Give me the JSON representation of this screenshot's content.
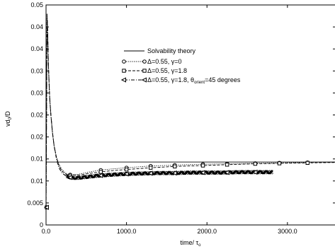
{
  "chart_data": {
    "type": "line",
    "title": "",
    "xlabel": "time/ τ",
    "xlabel_sub": "o",
    "ylabel": "vd",
    "ylabel_sub": "0",
    "ylabel_tail": "/D",
    "xlim": [
      0,
      3600
    ],
    "ylim": [
      0,
      0.05
    ],
    "xticks": [
      0,
      1000,
      2000,
      3000
    ],
    "xtick_labels": [
      "0.0",
      "1000.0",
      "2000.0",
      "3000.0"
    ],
    "yticks": [
      0,
      0.005,
      0.01,
      0.015,
      0.02,
      0.025,
      0.03,
      0.035,
      0.04,
      0.045,
      0.05
    ],
    "ytick_labels": [
      "0",
      "0.005",
      "0.01",
      "0.01",
      "0.02",
      "0.02",
      "0.03",
      "0.03",
      "0.04",
      "0.04",
      "0.05"
    ],
    "legend_position": "center",
    "series": [
      {
        "name": "Solvability theory",
        "style": "solid",
        "marker": "none",
        "x": [
          0,
          3600
        ],
        "y": [
          0.0143,
          0.0143
        ]
      },
      {
        "name_parts": [
          "Δ=0.55, γ=0",
          "",
          ""
        ],
        "style": "dotted",
        "marker": "circle",
        "x": [
          0,
          5,
          12,
          20,
          30,
          45,
          60,
          80,
          100,
          130,
          160,
          200,
          250,
          300,
          340,
          400,
          500,
          650,
          800,
          1000,
          1300,
          1600,
          1950,
          2250,
          2600,
          2900,
          3250,
          3600
        ],
        "y": [
          0.004,
          0.02,
          0.048,
          0.044,
          0.036,
          0.029,
          0.025,
          0.021,
          0.018,
          0.0155,
          0.0138,
          0.0125,
          0.0117,
          0.0114,
          0.0115,
          0.0115,
          0.0119,
          0.0124,
          0.0127,
          0.013,
          0.0134,
          0.0136,
          0.0138,
          0.0139,
          0.014,
          0.0141,
          0.0142,
          0.0143
        ]
      },
      {
        "name_parts": [
          "Δ=0.55, γ=1.8",
          "",
          ""
        ],
        "style": "dashed",
        "marker": "square",
        "x": [
          0,
          5,
          12,
          20,
          30,
          45,
          60,
          80,
          100,
          130,
          160,
          200,
          250,
          300,
          340,
          400,
          500,
          650,
          800,
          1000,
          1300,
          1600,
          1950,
          2250,
          2600,
          2900,
          3250,
          3600
        ],
        "y": [
          0.004,
          0.02,
          0.048,
          0.044,
          0.036,
          0.029,
          0.025,
          0.021,
          0.018,
          0.0153,
          0.0135,
          0.0122,
          0.0115,
          0.0112,
          0.0113,
          0.0113,
          0.0116,
          0.012,
          0.0123,
          0.0126,
          0.013,
          0.0133,
          0.0135,
          0.0137,
          0.0139,
          0.014,
          0.0141,
          0.0142
        ]
      },
      {
        "name_parts": [
          "Δ=0.55, γ=1.8, θ",
          "orient",
          "=45 degrees"
        ],
        "style": "dashdot-noisy",
        "marker": "triangle-left",
        "x": [
          0,
          5,
          12,
          20,
          30,
          45,
          60,
          80,
          100,
          130,
          160,
          200,
          250,
          300,
          340,
          400,
          500,
          650,
          800,
          1000,
          1200,
          1400,
          1600,
          1800,
          2000,
          2200,
          2400,
          2600,
          2820
        ],
        "y": [
          0.004,
          0.02,
          0.048,
          0.044,
          0.036,
          0.029,
          0.025,
          0.021,
          0.018,
          0.015,
          0.013,
          0.0118,
          0.0111,
          0.0108,
          0.0107,
          0.0107,
          0.0109,
          0.0112,
          0.0114,
          0.0116,
          0.0117,
          0.0118,
          0.0118,
          0.0119,
          0.0119,
          0.0119,
          0.012,
          0.012,
          0.012
        ]
      }
    ],
    "legend_entries_text": [
      {
        "main": "Solvability theory",
        "sub": "",
        "tail": ""
      },
      {
        "main": "Δ=0.55, γ=0",
        "sub": "",
        "tail": ""
      },
      {
        "main": "Δ=0.55, γ=1.8",
        "sub": "",
        "tail": ""
      },
      {
        "main": "Δ=0.55, γ=1.8, θ",
        "sub": "orient",
        "tail": "=45 degrees"
      }
    ]
  }
}
